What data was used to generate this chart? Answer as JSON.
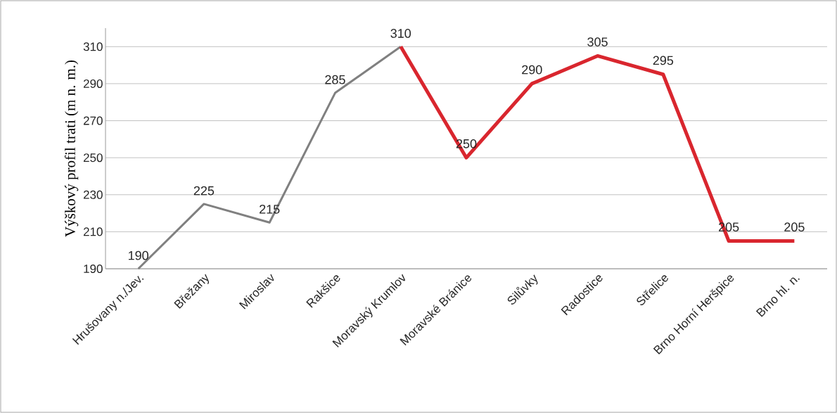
{
  "chart_data": {
    "type": "line",
    "ylabel": "Výškový profil trati (m n. m.)",
    "categories": [
      "Hrušovany n./Jev.",
      "Břežany",
      "Miroslav",
      "Rakšice",
      "Moravský Krumlov",
      "Moravské Bránice",
      "Silůvky",
      "Radostice",
      "Střelice",
      "Brno Horní Heršpice",
      "Brno hl. n."
    ],
    "series": [
      {
        "color": "#808080",
        "values": [
          190,
          225,
          215,
          285,
          310,
          null,
          null,
          null,
          null,
          null,
          null
        ],
        "value_labels": [
          "190",
          "225",
          "215",
          "285",
          "310",
          null,
          null,
          null,
          null,
          null,
          null
        ]
      },
      {
        "color": "#d9262e",
        "values": [
          null,
          null,
          null,
          null,
          310,
          250,
          290,
          305,
          295,
          205,
          205
        ],
        "value_labels": [
          null,
          null,
          null,
          null,
          null,
          "250",
          "290",
          "305",
          "295",
          "205",
          "205"
        ]
      }
    ],
    "ylim": [
      190,
      320
    ],
    "yticks": [
      190,
      210,
      230,
      250,
      270,
      290,
      310
    ],
    "grid": "y"
  }
}
